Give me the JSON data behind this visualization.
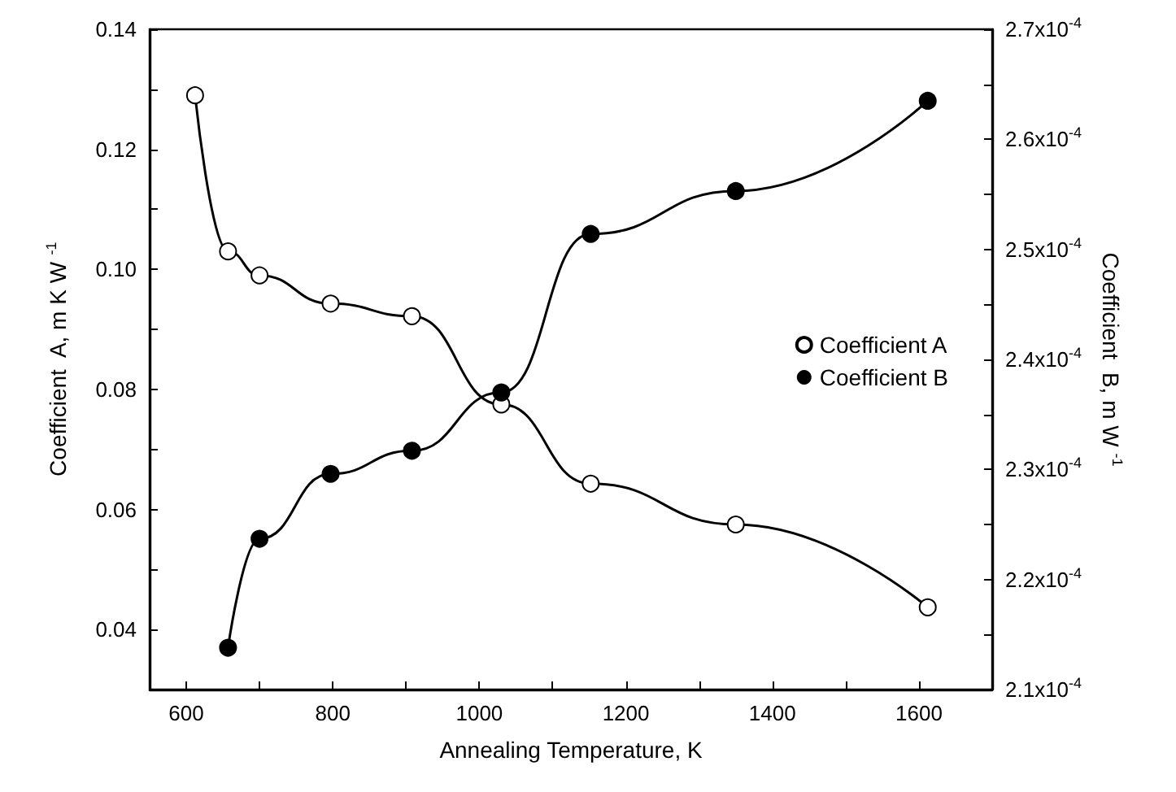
{
  "chart_data": {
    "type": "line",
    "xlabel": "Annealing Temperature, K",
    "ylabel": "Coefficient  A, m K W $^{-1}$",
    "y2label": "Coefficient  B, m W $^{-1}$",
    "series": [
      {
        "name": "Coefficient A",
        "color": "#000000",
        "x": [
          612,
          657,
          700,
          797,
          908,
          1030,
          1152,
          1350,
          1612
        ],
        "values": [
          0.129,
          0.103,
          0.099,
          0.0943,
          0.0922,
          0.0775,
          0.0643,
          0.0575,
          0.0437
        ]
      },
      {
        "name": "Coefficient B",
        "color": "#000000",
        "axis": "y2",
        "x": [
          657,
          700,
          797,
          908,
          1030,
          1152,
          1350,
          1612
        ],
        "values": [
          0.0002138,
          0.0002237,
          0.0002296,
          0.0002317,
          0.000237,
          0.0002514,
          0.0002553,
          0.0002635
        ]
      }
    ],
    "xlim": [
      550,
      1700
    ],
    "xticks": [
      600,
      {
        "value": 700,
        "label": null
      },
      800,
      {
        "value": 900,
        "label": null
      },
      1000,
      {
        "value": 1100,
        "label": null
      },
      1200,
      {
        "value": 1300,
        "label": null
      },
      1400,
      {
        "value": 1500,
        "label": null
      },
      1600
    ],
    "ylim": [
      0.03,
      0.14
    ],
    "yticks": [
      {
        "value": 0.03,
        "label": null
      },
      {
        "value": 0.04,
        "label": "0.04"
      },
      {
        "value": 0.05,
        "label": null
      },
      {
        "value": 0.06,
        "label": "0.06"
      },
      {
        "value": 0.07,
        "label": null
      },
      {
        "value": 0.08,
        "label": "0.08"
      },
      {
        "value": 0.09,
        "label": null
      },
      {
        "value": 0.1,
        "label": "0.10"
      },
      {
        "value": 0.11,
        "label": null
      },
      {
        "value": 0.12,
        "label": "0.12"
      },
      {
        "value": 0.13,
        "label": null
      },
      {
        "value": 0.14,
        "label": "0.14"
      }
    ],
    "y2lim": [
      0.00021,
      0.00027
    ],
    "y2ticks": [
      {
        "value": 0.00021,
        "label": "2.1x10$^{-4}$"
      },
      {
        "value": 0.000215,
        "label": null
      },
      {
        "value": 0.00022,
        "label": "2.2x10$^{-4}$"
      },
      {
        "value": 0.000225,
        "label": null
      },
      {
        "value": 0.00023,
        "label": "2.3x10$^{-4}$"
      },
      {
        "value": 0.000235,
        "label": null
      },
      {
        "value": 0.00024,
        "label": "2.4x10$^{-4}$"
      },
      {
        "value": 0.000245,
        "label": null
      },
      {
        "value": 0.00025,
        "label": "2.5x10$^{-4}$"
      },
      {
        "value": 0.000255,
        "label": null
      },
      {
        "value": 0.00026,
        "label": "2.6x10$^{-4}$"
      },
      {
        "value": 0.000265,
        "label": null
      },
      {
        "value": 0.00027,
        "label": "2.7x10$^{-4}$"
      }
    ],
    "marker": "circle",
    "line_style": "solid",
    "grid": false,
    "legend": "right"
  }
}
